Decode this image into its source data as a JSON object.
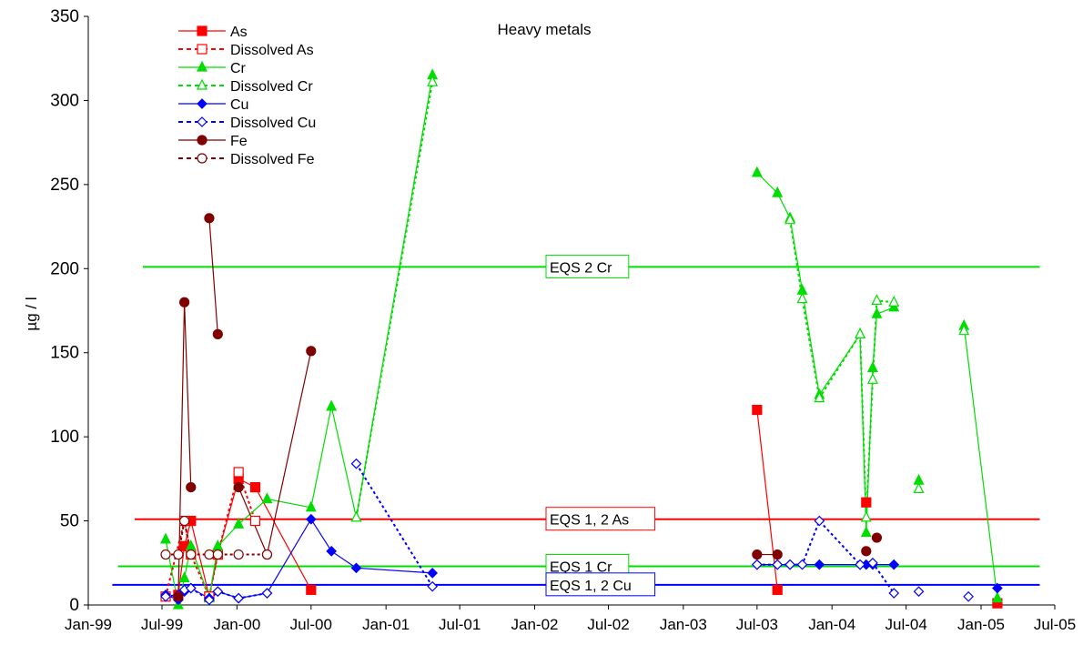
{
  "chart_data": {
    "type": "line",
    "title": "Heavy metals",
    "ylabel": "µg / l",
    "xlabel": "",
    "ylim": [
      0,
      350
    ],
    "xlim": [
      "1999-01-01",
      "2005-07-01"
    ],
    "yticks": [
      0,
      50,
      100,
      150,
      200,
      250,
      300,
      350
    ],
    "xticks": [
      {
        "date": "1999-01-01",
        "label": "Jan-99"
      },
      {
        "date": "1999-07-01",
        "label": "Jul-99"
      },
      {
        "date": "2000-01-01",
        "label": "Jan-00"
      },
      {
        "date": "2000-07-01",
        "label": "Jul-00"
      },
      {
        "date": "2001-01-01",
        "label": "Jan-01"
      },
      {
        "date": "2001-07-01",
        "label": "Jul-01"
      },
      {
        "date": "2002-01-01",
        "label": "Jan-02"
      },
      {
        "date": "2002-07-01",
        "label": "Jul-02"
      },
      {
        "date": "2003-01-01",
        "label": "Jan-03"
      },
      {
        "date": "2003-07-01",
        "label": "Jul-03"
      },
      {
        "date": "2004-01-01",
        "label": "Jan-04"
      },
      {
        "date": "2004-07-01",
        "label": "Jul-04"
      },
      {
        "date": "2005-01-01",
        "label": "Jan-05"
      },
      {
        "date": "2005-07-01",
        "label": "Jul-05"
      }
    ],
    "grid": false,
    "legend_position": "top-left",
    "series": [
      {
        "name": "As",
        "color": "#ff0000",
        "marker": "square",
        "filled": true,
        "dashed": false,
        "segments": [
          [
            [
              "1999-08-10",
              6
            ],
            [
              "1999-08-25",
              35
            ],
            [
              "1999-09-10",
              50
            ],
            [
              "1999-10-25",
              5
            ],
            [
              "1999-11-15",
              30
            ],
            [
              "2000-01-05",
              75
            ],
            [
              "2000-02-15",
              70
            ],
            [
              "2000-07-01",
              9
            ]
          ],
          [
            [
              "2003-07-01",
              116
            ],
            [
              "2003-08-20",
              9
            ]
          ],
          [
            [
              "2004-03-25",
              61
            ]
          ],
          [
            [
              "2005-02-10",
              1
            ]
          ]
        ]
      },
      {
        "name": "Dissolved As",
        "color": "#ff0000",
        "marker": "square",
        "filled": false,
        "dashed": true,
        "segments": [
          [
            [
              "1999-07-10",
              5
            ],
            [
              "1999-08-25",
              50
            ],
            [
              "1999-09-10",
              30
            ],
            [
              "1999-10-25",
              5
            ],
            [
              "1999-11-15",
              30
            ],
            [
              "2000-01-05",
              79
            ],
            [
              "2000-02-15",
              50
            ]
          ]
        ]
      },
      {
        "name": "Cr",
        "color": "#00dd00",
        "marker": "triangle",
        "filled": true,
        "dashed": false,
        "segments": [
          [
            [
              "1999-07-10",
              39
            ],
            [
              "1999-08-10",
              0
            ],
            [
              "1999-08-25",
              16
            ],
            [
              "1999-09-10",
              35
            ],
            [
              "1999-10-25",
              4
            ],
            [
              "1999-11-15",
              35
            ],
            [
              "2000-01-05",
              48
            ],
            [
              "2000-03-15",
              63
            ],
            [
              "2000-07-01",
              58
            ],
            [
              "2000-08-20",
              118
            ],
            [
              "2000-10-20",
              52
            ],
            [
              "2001-04-25",
              315
            ]
          ],
          [
            [
              "2003-07-01",
              257
            ],
            [
              "2003-08-20",
              245
            ],
            [
              "2003-09-20",
              230
            ],
            [
              "2003-10-20",
              187
            ],
            [
              "2003-12-01",
              125
            ],
            [
              "2004-03-10",
              161
            ],
            [
              "2004-03-25",
              43
            ],
            [
              "2004-04-10",
              141
            ],
            [
              "2004-04-20",
              173
            ],
            [
              "2004-06-01",
              177
            ]
          ],
          [
            [
              "2004-08-01",
              74
            ]
          ],
          [
            [
              "2004-11-20",
              166
            ],
            [
              "2005-02-10",
              4
            ]
          ]
        ]
      },
      {
        "name": "Dissolved Cr",
        "color": "#00dd00",
        "marker": "triangle",
        "filled": false,
        "dashed": true,
        "segments": [
          [
            [
              "2000-10-20",
              52
            ],
            [
              "2001-04-25",
              311
            ]
          ],
          [
            [
              "2003-09-20",
              229
            ],
            [
              "2003-10-20",
              182
            ],
            [
              "2003-12-01",
              123
            ],
            [
              "2004-03-10",
              161
            ],
            [
              "2004-03-25",
              52
            ],
            [
              "2004-04-10",
              134
            ],
            [
              "2004-04-20",
              181
            ],
            [
              "2004-06-01",
              180
            ]
          ],
          [
            [
              "2004-08-01",
              69
            ]
          ],
          [
            [
              "2004-11-20",
              163
            ]
          ]
        ]
      },
      {
        "name": "Cu",
        "color": "#0000ff",
        "marker": "diamond",
        "filled": true,
        "dashed": false,
        "segments": [
          [
            [
              "1999-07-10",
              6
            ],
            [
              "1999-08-10",
              3
            ],
            [
              "1999-08-25",
              8
            ],
            [
              "1999-09-10",
              10
            ],
            [
              "1999-10-25",
              4
            ],
            [
              "1999-11-15",
              8
            ],
            [
              "2000-01-05",
              4
            ],
            [
              "2000-03-15",
              7
            ],
            [
              "2000-07-01",
              51
            ],
            [
              "2000-08-20",
              32
            ],
            [
              "2000-10-20",
              22
            ],
            [
              "2001-04-25",
              19
            ]
          ],
          [
            [
              "2003-07-01",
              24
            ],
            [
              "2003-08-20",
              24
            ],
            [
              "2003-09-20",
              24
            ],
            [
              "2003-12-01",
              24
            ],
            [
              "2004-03-10",
              24
            ],
            [
              "2004-03-25",
              24
            ],
            [
              "2004-04-10",
              24
            ],
            [
              "2004-06-01",
              24
            ]
          ],
          [
            [
              "2005-02-10",
              10
            ]
          ]
        ]
      },
      {
        "name": "Dissolved Cu",
        "color": "#0000ff",
        "marker": "diamond",
        "filled": false,
        "dashed": true,
        "segments": [
          [
            [
              "1999-07-10",
              5
            ],
            [
              "1999-08-10",
              6
            ],
            [
              "1999-08-25",
              9
            ],
            [
              "1999-09-10",
              10
            ],
            [
              "1999-10-25",
              3
            ],
            [
              "1999-11-15",
              8
            ],
            [
              "2000-01-05",
              4
            ],
            [
              "2000-03-15",
              7
            ]
          ],
          [
            [
              "2000-10-20",
              84
            ],
            [
              "2001-04-25",
              11
            ]
          ],
          [
            [
              "2003-07-01",
              24
            ],
            [
              "2003-08-20",
              24
            ],
            [
              "2003-09-20",
              24
            ],
            [
              "2003-10-20",
              24
            ],
            [
              "2003-12-01",
              50
            ],
            [
              "2004-03-10",
              24
            ],
            [
              "2004-04-10",
              25
            ],
            [
              "2004-06-01",
              7
            ]
          ],
          [
            [
              "2004-08-01",
              8
            ]
          ],
          [
            [
              "2004-12-01",
              5
            ]
          ]
        ]
      },
      {
        "name": "Fe",
        "color": "#800000",
        "marker": "circle",
        "filled": true,
        "dashed": false,
        "segments": [
          [
            [
              "1999-08-10",
              5
            ],
            [
              "1999-08-25",
              180
            ],
            [
              "1999-09-10",
              70
            ]
          ],
          [
            [
              "1999-10-25",
              230
            ],
            [
              "1999-11-15",
              161
            ]
          ],
          [
            [
              "2000-01-05",
              70
            ],
            [
              "2000-03-15",
              30
            ],
            [
              "2000-07-01",
              151
            ]
          ],
          [
            [
              "2003-07-01",
              30
            ],
            [
              "2003-08-20",
              30
            ]
          ],
          [
            [
              "2004-03-25",
              32
            ]
          ],
          [
            [
              "2004-04-20",
              40
            ]
          ]
        ]
      },
      {
        "name": "Dissolved Fe",
        "color": "#800000",
        "marker": "circle",
        "filled": false,
        "dashed": true,
        "segments": [
          [
            [
              "1999-07-10",
              30
            ],
            [
              "1999-08-10",
              30
            ],
            [
              "1999-08-25",
              50
            ],
            [
              "1999-09-10",
              30
            ],
            [
              "1999-10-25",
              30
            ],
            [
              "1999-11-15",
              30
            ],
            [
              "2000-01-05",
              30
            ],
            [
              "2000-03-15",
              30
            ]
          ]
        ]
      }
    ],
    "reference_lines": [
      {
        "label": "EQS 2 Cr",
        "value": 201,
        "color": "#00dd00",
        "from": "1999-05-15",
        "to": "2005-05-25"
      },
      {
        "label": "EQS 1, 2 As",
        "value": 51,
        "color": "#ff0000",
        "from": "1999-04-25",
        "to": "2005-05-25"
      },
      {
        "label": "EQS 1 Cr",
        "value": 23,
        "color": "#00dd00",
        "from": "1999-03-15",
        "to": "2005-05-25"
      },
      {
        "label": "EQS 1, 2 Cu",
        "value": 12,
        "color": "#0000ff",
        "from": "1999-03-01",
        "to": "2005-05-25"
      }
    ]
  }
}
